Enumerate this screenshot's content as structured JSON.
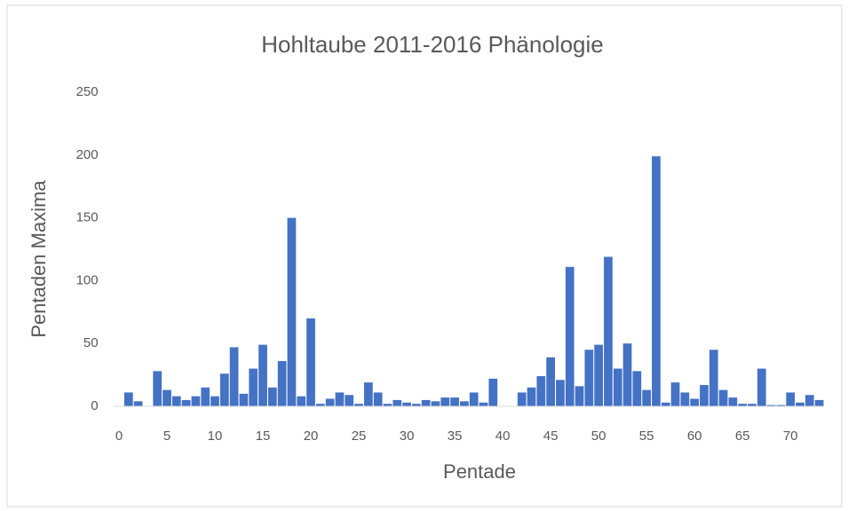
{
  "chart_data": {
    "type": "bar",
    "title": "Hohltaube 2011-2016 Phänologie",
    "x_label": "Pentade",
    "y_label": "Pentaden Maxima",
    "x": [
      1,
      2,
      3,
      4,
      5,
      6,
      7,
      8,
      9,
      10,
      11,
      12,
      13,
      14,
      15,
      16,
      17,
      18,
      19,
      20,
      21,
      22,
      23,
      24,
      25,
      26,
      27,
      28,
      29,
      30,
      31,
      32,
      33,
      34,
      35,
      36,
      37,
      38,
      39,
      40,
      41,
      42,
      43,
      44,
      45,
      46,
      47,
      48,
      49,
      50,
      51,
      52,
      53,
      54,
      55,
      56,
      57,
      58,
      59,
      60,
      61,
      62,
      63,
      64,
      65,
      66,
      67,
      68,
      69,
      70,
      71,
      72,
      73
    ],
    "values": [
      11,
      4,
      0,
      28,
      13,
      8,
      5,
      8,
      15,
      8,
      26,
      47,
      10,
      30,
      49,
      15,
      36,
      150,
      8,
      70,
      2,
      6,
      11,
      9,
      2,
      19,
      11,
      2,
      5,
      3,
      2,
      5,
      4,
      7,
      7,
      4,
      11,
      3,
      22,
      0,
      0,
      11,
      15,
      24,
      39,
      21,
      111,
      16,
      45,
      49,
      119,
      30,
      50,
      28,
      13,
      199,
      3,
      19,
      11,
      6,
      17,
      45,
      13,
      7,
      2,
      2,
      30,
      1,
      1,
      11,
      3,
      9,
      5
    ],
    "color": "#4472c4",
    "xlim": [
      -0.5,
      73.5
    ],
    "xticks": [
      0,
      5,
      10,
      15,
      20,
      25,
      30,
      35,
      40,
      45,
      50,
      55,
      60,
      65,
      70
    ],
    "ylim": [
      0,
      250
    ],
    "yticks": [
      0,
      50,
      100,
      150,
      200,
      250
    ],
    "grid": false
  }
}
